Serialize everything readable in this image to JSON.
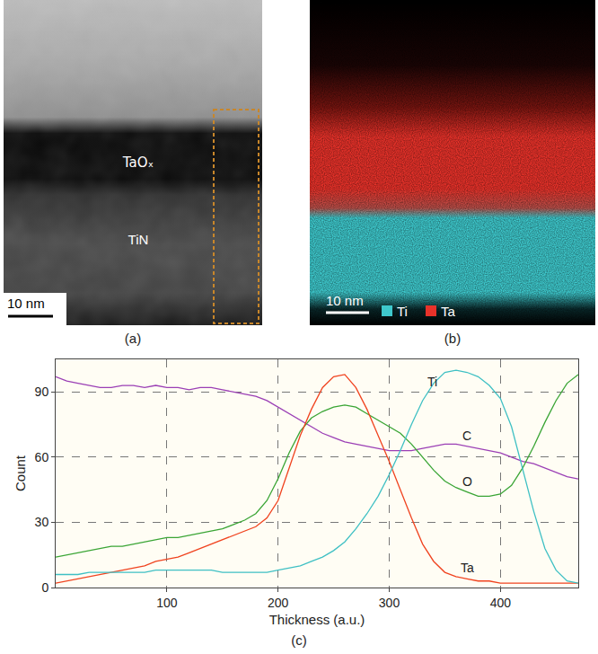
{
  "panels": {
    "a": {
      "label": "(a)",
      "layers": [
        "TaOₓ",
        "TiN"
      ],
      "scale_bar": "10 nm"
    },
    "b": {
      "label": "(b)",
      "scale_bar": "10 nm",
      "legend": [
        {
          "name": "Ti",
          "color": "#3ec8cc"
        },
        {
          "name": "Ta",
          "color": "#e8322a"
        }
      ]
    },
    "c": {
      "label": "(c)"
    }
  },
  "chart_data": {
    "type": "line",
    "x_label": "Thickness (a.u.)",
    "y_label": "Count",
    "x": [
      0,
      10,
      20,
      30,
      40,
      50,
      60,
      70,
      80,
      90,
      100,
      110,
      120,
      130,
      140,
      150,
      160,
      170,
      180,
      190,
      200,
      210,
      220,
      230,
      240,
      250,
      260,
      270,
      280,
      290,
      300,
      310,
      320,
      330,
      340,
      350,
      360,
      370,
      380,
      390,
      400,
      410,
      420,
      430,
      440,
      450,
      460,
      470
    ],
    "series": [
      {
        "name": "C",
        "color": "#9b3fb5",
        "values": [
          97,
          95,
          94,
          93,
          92,
          92,
          93,
          93,
          92,
          93,
          92,
          92,
          91,
          92,
          92,
          91,
          90,
          89,
          88,
          86,
          83,
          80,
          77,
          74,
          71,
          69,
          67,
          66,
          65,
          64,
          63,
          63,
          63,
          64,
          65,
          66,
          66,
          65,
          64,
          63,
          62,
          60,
          58,
          57,
          55,
          53,
          51,
          50
        ]
      },
      {
        "name": "O",
        "color": "#3aa535",
        "values": [
          14,
          15,
          16,
          17,
          18,
          19,
          19,
          20,
          21,
          22,
          23,
          23,
          24,
          25,
          26,
          27,
          29,
          31,
          34,
          40,
          50,
          62,
          72,
          78,
          81,
          83,
          84,
          83,
          80,
          77,
          74,
          71,
          66,
          60,
          54,
          49,
          46,
          44,
          42,
          42,
          43,
          47,
          55,
          65,
          76,
          86,
          94,
          98
        ]
      },
      {
        "name": "Ta",
        "color": "#f0431f",
        "values": [
          2,
          3,
          4,
          5,
          6,
          7,
          8,
          9,
          10,
          12,
          13,
          14,
          16,
          18,
          20,
          22,
          24,
          26,
          28,
          32,
          40,
          55,
          70,
          82,
          92,
          97,
          98,
          92,
          82,
          70,
          58,
          45,
          32,
          20,
          12,
          7,
          5,
          4,
          3,
          3,
          2,
          2,
          2,
          2,
          2,
          2,
          2,
          2
        ]
      },
      {
        "name": "Ti",
        "color": "#3fc0c4",
        "values": [
          6,
          6,
          6,
          7,
          7,
          7,
          7,
          7,
          7,
          8,
          8,
          8,
          8,
          8,
          8,
          7,
          7,
          7,
          7,
          7,
          8,
          9,
          10,
          12,
          14,
          17,
          21,
          27,
          34,
          42,
          52,
          63,
          75,
          86,
          94,
          99,
          100,
          99,
          97,
          93,
          87,
          74,
          55,
          35,
          18,
          8,
          3,
          2
        ]
      }
    ],
    "xlim": [
      0,
      470
    ],
    "ylim": [
      0,
      105
    ],
    "xticks": [
      100,
      200,
      300,
      400
    ],
    "yticks": [
      0,
      30,
      60,
      90
    ],
    "grid": true
  }
}
